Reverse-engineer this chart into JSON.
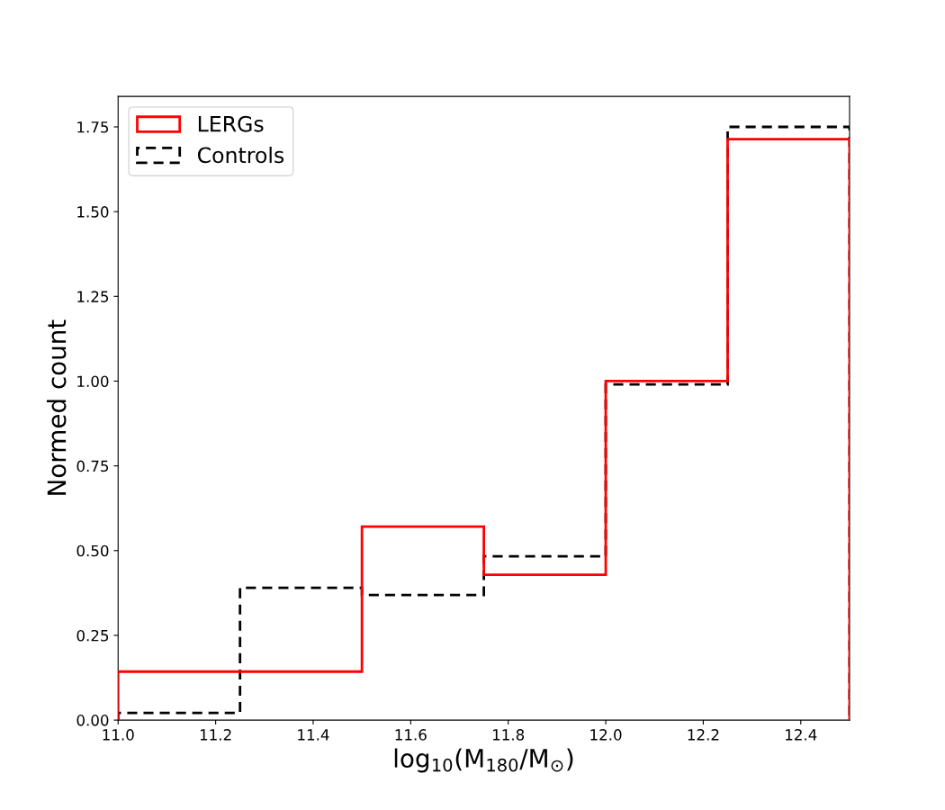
{
  "chart_data": {
    "type": "histogram",
    "xlabel": "log$_{10}$(M$_{180}$/M$_{⊙}$)",
    "ylabel": "Normed count",
    "bins": [
      11.0,
      11.25,
      11.5,
      11.75,
      12.0,
      12.25,
      12.5
    ],
    "series": [
      {
        "name": "LERGs",
        "color": "#ff0000",
        "line_style": "solid",
        "values": [
          0.143,
          0.143,
          0.571,
          0.429,
          1.0,
          1.714
        ]
      },
      {
        "name": "Controls",
        "color": "#000000",
        "line_style": "dashed",
        "values": [
          0.021,
          0.39,
          0.369,
          0.483,
          0.99,
          1.75
        ]
      }
    ],
    "xlim": [
      11.0,
      12.5
    ],
    "ylim": [
      0,
      1.84
    ],
    "xticks": [
      {
        "value": 11.0,
        "label": "11.0"
      },
      11.2,
      11.4,
      11.6,
      11.8,
      {
        "value": 12.0,
        "label": "12.0"
      },
      12.2,
      12.4
    ],
    "yticks": [
      {
        "value": 0,
        "label": "0.00"
      },
      0.25,
      {
        "value": 0.5,
        "label": "0.50"
      },
      0.75,
      {
        "value": 1.0,
        "label": "1.00"
      },
      1.25,
      {
        "value": 1.5,
        "label": "1.50"
      },
      1.75
    ],
    "legend": "top left",
    "grid": false
  }
}
